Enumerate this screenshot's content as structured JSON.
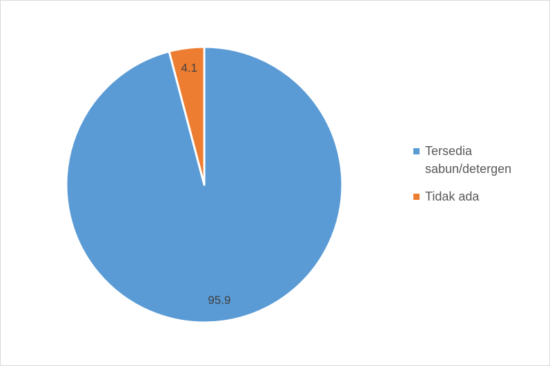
{
  "chart_data": {
    "type": "pie",
    "categories": [
      "Tersedia sabun/detergen",
      "Tidak ada"
    ],
    "values": [
      95.9,
      4.1
    ],
    "colors": [
      "#5b9bd5",
      "#ed7d31"
    ],
    "legend": "right"
  }
}
